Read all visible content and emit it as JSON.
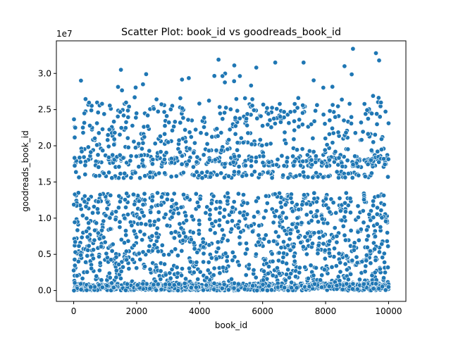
{
  "chart_data": {
    "type": "scatter",
    "title": "Scatter Plot: book_id vs goodreads_book_id",
    "xlabel": "book_id",
    "ylabel": "goodreads_book_id",
    "x_ticks": [
      "0",
      "2000",
      "4000",
      "6000",
      "8000",
      "10000"
    ],
    "y_ticks": [
      "0.0",
      "0.5",
      "1.0",
      "1.5",
      "2.0",
      "2.5",
      "3.0"
    ],
    "y_offset_text": "1e7",
    "xlim": [
      -550,
      10550
    ],
    "ylim": [
      -1500000,
      34500000
    ],
    "grid": false,
    "marker": "circle",
    "point_count_approx": 10000,
    "bands_note_values": [
      16000000,
      18000000
    ],
    "series": [
      {
        "x_range": [
          1,
          10000
        ],
        "y_ranges": [
          [
            0,
            1000000
          ],
          [
            1000000,
            13500000
          ],
          [
            15500000,
            18500000
          ],
          [
            19000000,
            26000000
          ],
          [
            26000000,
            33500000
          ]
        ],
        "samples": [
          [
            1,
            2767052
          ],
          [
            2,
            3
          ],
          [
            3,
            41865
          ],
          [
            4,
            2657
          ],
          [
            5,
            4671
          ],
          [
            6,
            11870085
          ],
          [
            7,
            5907
          ],
          [
            8,
            5107
          ],
          [
            9,
            960
          ],
          [
            10,
            1885
          ],
          [
            50,
            22500000
          ],
          [
            150,
            13500000
          ],
          [
            230,
            29000000
          ],
          [
            300,
            21800000
          ],
          [
            560,
            24900000
          ],
          [
            900,
            25800000
          ],
          [
            1500,
            30500000
          ],
          [
            2200,
            28500000
          ],
          [
            2300,
            29900000
          ],
          [
            4600,
            31900000
          ],
          [
            5100,
            31100000
          ],
          [
            5800,
            30800000
          ],
          [
            6400,
            31500000
          ],
          [
            7300,
            31500000
          ],
          [
            8600,
            31000000
          ],
          [
            8870,
            33400000
          ],
          [
            9600,
            32800000
          ],
          [
            9700,
            31800000
          ],
          [
            9980,
            3200000
          ],
          [
            10000,
            500000
          ]
        ],
        "color": "#1f77b4",
        "edge_color": "#ffffff"
      }
    ]
  },
  "colors": {
    "marker_fill": "#1f77b4",
    "marker_edge": "#ffffff",
    "axes": "#000000",
    "background": "#ffffff"
  }
}
